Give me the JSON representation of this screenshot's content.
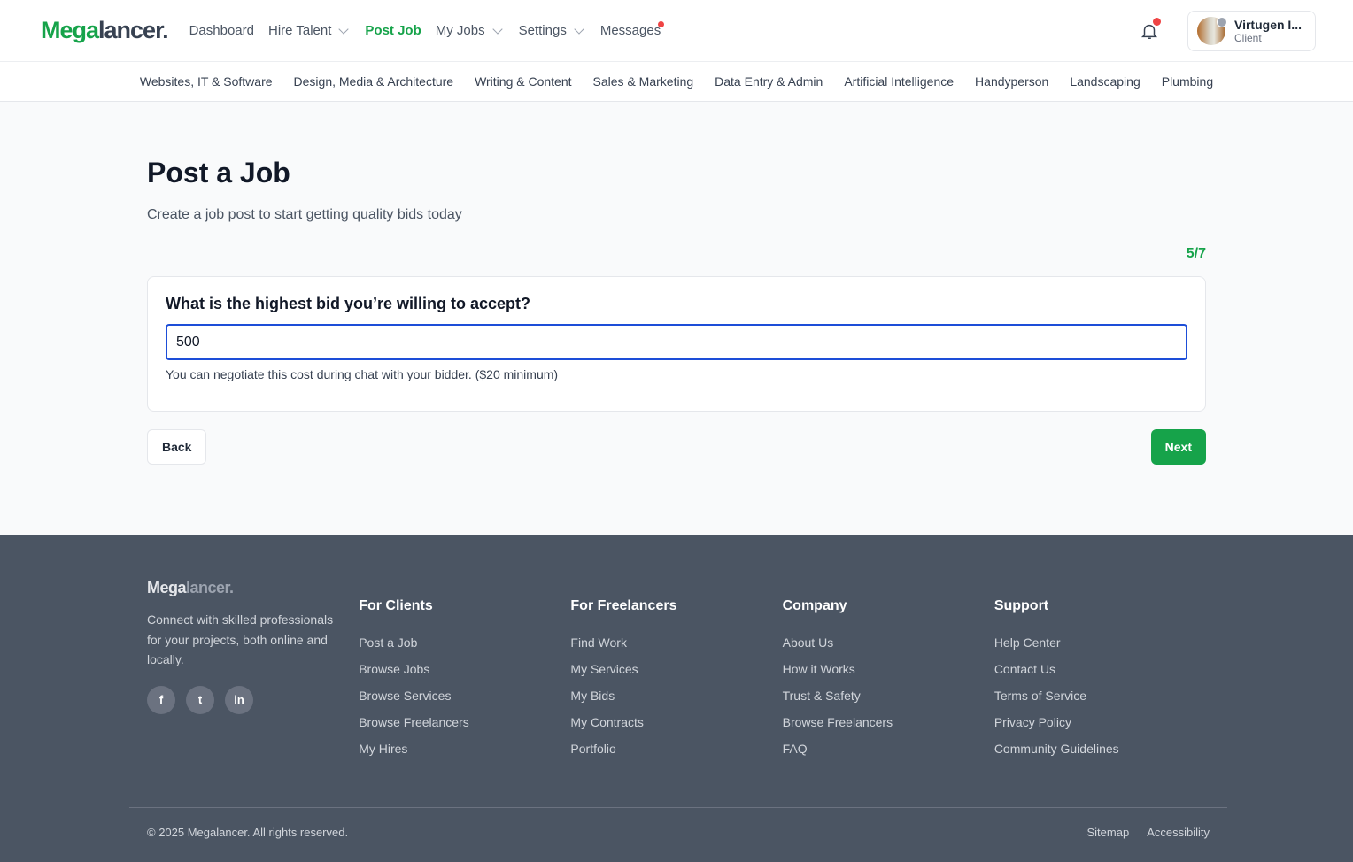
{
  "header": {
    "logo_a": "Mega",
    "logo_b": "lancer.",
    "nav": [
      {
        "label": "Dashboard"
      },
      {
        "label": "Hire Talent"
      },
      {
        "label": "Post Job"
      },
      {
        "label": "My Jobs"
      },
      {
        "label": "Settings"
      },
      {
        "label": "Messages"
      }
    ],
    "user": {
      "name": "Virtugen I...",
      "role": "Client"
    }
  },
  "categories": [
    "Websites, IT & Software",
    "Design, Media & Architecture",
    "Writing & Content",
    "Sales & Marketing",
    "Data Entry & Admin",
    "Artificial Intelligence",
    "Handyperson",
    "Landscaping",
    "Plumbing"
  ],
  "main": {
    "title": "Post a Job",
    "subtitle": "Create a job post to start getting quality bids today",
    "step": "5/7",
    "question": "What is the highest bid you’re willing to accept?",
    "bid_value": "500",
    "hint": "You can negotiate this cost during chat with your bidder. ($20 minimum)",
    "back": "Back",
    "next": "Next"
  },
  "footer": {
    "logo_a": "Mega",
    "logo_b": "lancer.",
    "desc": "Connect with skilled professionals for your projects, both online and locally.",
    "social": [
      "f",
      "t",
      "in"
    ],
    "columns": [
      {
        "title": "For Clients",
        "links": [
          "Post a Job",
          "Browse Jobs",
          "Browse Services",
          "Browse Freelancers",
          "My Hires"
        ]
      },
      {
        "title": "For Freelancers",
        "links": [
          "Find Work",
          "My Services",
          "My Bids",
          "My Contracts",
          "Portfolio"
        ]
      },
      {
        "title": "Company",
        "links": [
          "About Us",
          "How it Works",
          "Trust & Safety",
          "Browse Freelancers",
          "FAQ"
        ]
      },
      {
        "title": "Support",
        "links": [
          "Help Center",
          "Contact Us",
          "Terms of Service",
          "Privacy Policy",
          "Community Guidelines"
        ]
      }
    ],
    "copyright": "© 2025 Megalancer. All rights reserved.",
    "sitemap": "Sitemap",
    "accessibility": "Accessibility"
  },
  "colors": {
    "accent": "#16a34a",
    "footer_bg": "#4b5563",
    "notification": "#ef4444"
  }
}
